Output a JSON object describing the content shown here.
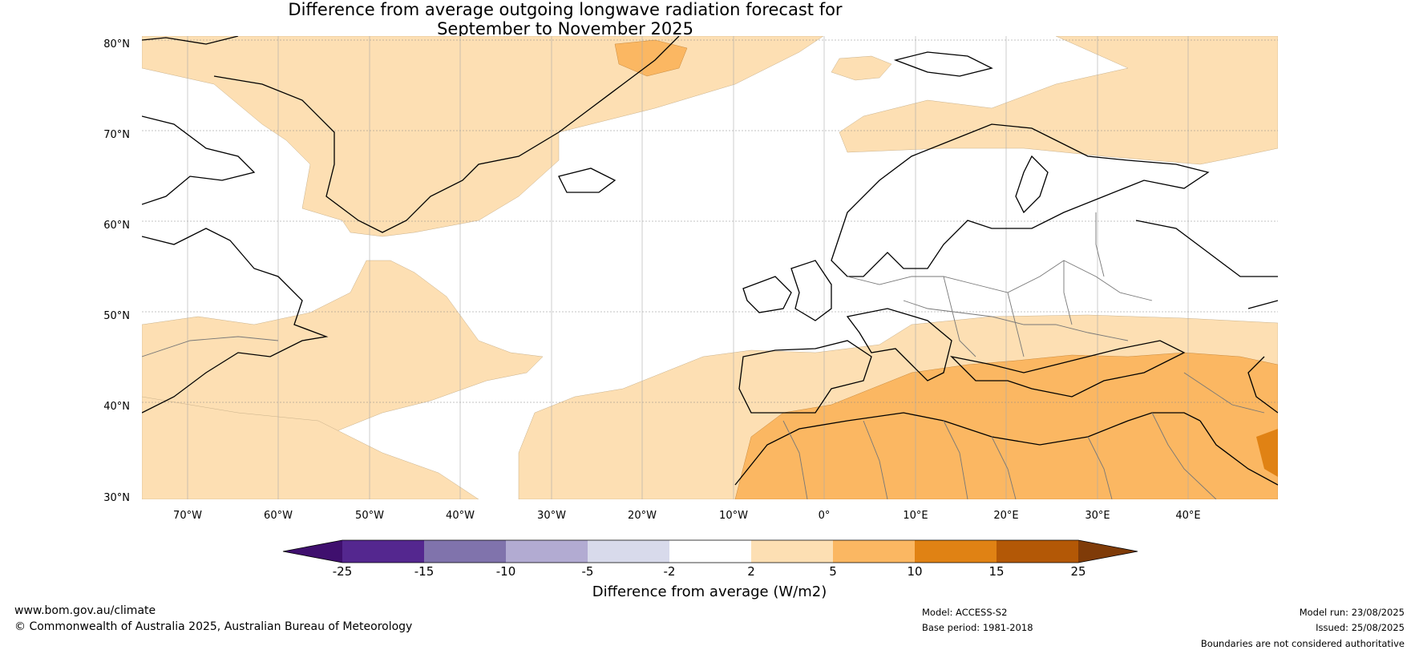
{
  "title": {
    "line1": "Difference from average outgoing longwave radiation forecast for",
    "line2": "September to November 2025"
  },
  "map": {
    "lat_labels": [
      "80°N",
      "70°N",
      "60°N",
      "50°N",
      "40°N",
      "30°N"
    ],
    "lon_labels": [
      "70°W",
      "60°W",
      "50°W",
      "40°W",
      "30°W",
      "20°W",
      "10°W",
      "0°",
      "10°E",
      "20°E",
      "30°E",
      "40°E"
    ]
  },
  "colorbar": {
    "labels": [
      "-25",
      "-15",
      "-10",
      "-5",
      "-2",
      "2",
      "5",
      "10",
      "15",
      "25"
    ],
    "colors": [
      "#3f0f6e",
      "#54278f",
      "#8073ac",
      "#b2abd2",
      "#d8daeb",
      "#ffffff",
      "#fddfb3",
      "#fbb762",
      "#e08214",
      "#b35806",
      "#7f3b08"
    ],
    "title": "Difference from average (W/m2)"
  },
  "footer": {
    "url": "www.bom.gov.au/climate",
    "copyright": "© Commonwealth of Australia 2025, Australian Bureau of Meteorology",
    "model": "Model: ACCESS-S2",
    "base_period": "Base period: 1981-2018",
    "model_run": "Model run: 23/08/2025",
    "issued": "Issued: 25/08/2025",
    "disclaimer": "Boundaries are not considered authoritative"
  }
}
